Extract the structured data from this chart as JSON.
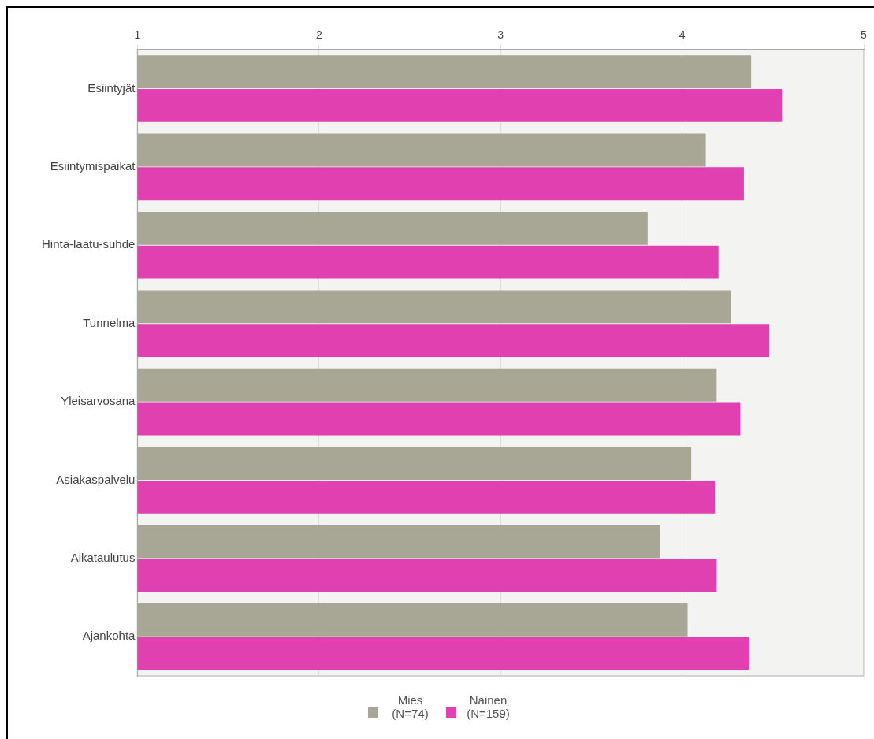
{
  "chart_data": {
    "type": "bar",
    "orientation": "horizontal",
    "categories": [
      "Esiintyjät",
      "Esiintymispaikat",
      "Hinta-laatu-suhde",
      "Tunnelma",
      "Yleisarvosana",
      "Asiakaspalvelu",
      "Aikataulutus",
      "Ajankohta"
    ],
    "series": [
      {
        "name": "Mies (N=74)",
        "color": "#a8a796",
        "values": [
          4.38,
          4.13,
          3.81,
          4.27,
          4.19,
          4.05,
          3.88,
          4.03
        ]
      },
      {
        "name": "Nainen (N=159)",
        "color": "#e040b0",
        "values": [
          4.55,
          4.34,
          4.2,
          4.48,
          4.32,
          4.18,
          4.19,
          4.37
        ]
      }
    ],
    "xlim": [
      1,
      5
    ],
    "xticks": [
      1,
      2,
      3,
      4,
      5
    ],
    "grid": "x",
    "legend": "bottom"
  }
}
